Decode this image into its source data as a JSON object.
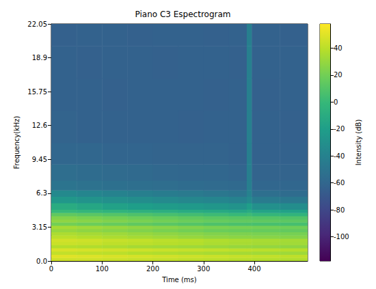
{
  "chart_data": {
    "type": "heatmap",
    "title": "Piano C3 Espectrogram",
    "x_label": "Time (ms)",
    "y_label": "Frequency(kHz)",
    "xlim": [
      0,
      505
    ],
    "xticks": [
      0,
      100,
      200,
      300,
      400
    ],
    "ylim": [
      0,
      22.05
    ],
    "yticks": [
      {
        "value": 0,
        "label": "0.0"
      },
      3.15,
      6.3,
      9.45,
      12.6,
      15.75,
      18.9,
      22.05
    ],
    "grid": false,
    "x_edges": [
      0,
      50,
      100,
      150,
      200,
      250,
      300,
      350,
      385,
      395,
      450,
      505
    ],
    "y_edges": [
      0,
      0.3,
      0.6,
      0.9,
      1.2,
      1.5,
      1.8,
      2.1,
      2.4,
      2.7,
      3.0,
      3.3,
      3.6,
      3.9,
      4.2,
      4.5,
      4.8,
      5.4,
      6.0,
      6.6,
      7.5,
      9,
      11,
      14,
      17,
      20,
      22.05
    ],
    "cells": [
      [
        45,
        45,
        44,
        43,
        42,
        41,
        40,
        39,
        39,
        38,
        37
      ],
      [
        50,
        49,
        48,
        47,
        46,
        45,
        44,
        43,
        43,
        42,
        41
      ],
      [
        42,
        41,
        40,
        38,
        37,
        36,
        35,
        34,
        34,
        33,
        32
      ],
      [
        48,
        47,
        46,
        45,
        44,
        43,
        42,
        41,
        41,
        40,
        39
      ],
      [
        38,
        37,
        36,
        34,
        33,
        32,
        31,
        30,
        30,
        29,
        28
      ],
      [
        44,
        43,
        41,
        40,
        39,
        38,
        36,
        35,
        35,
        34,
        33
      ],
      [
        46,
        45,
        43,
        42,
        40,
        39,
        37,
        36,
        36,
        35,
        34
      ],
      [
        40,
        38,
        36,
        34,
        32,
        30,
        28,
        27,
        27,
        26,
        25
      ],
      [
        36,
        34,
        32,
        30,
        28,
        26,
        24,
        23,
        23,
        22,
        21
      ],
      [
        30,
        28,
        26,
        24,
        22,
        20,
        18,
        17,
        17,
        16,
        15
      ],
      [
        34,
        32,
        30,
        28,
        26,
        24,
        22,
        21,
        21,
        20,
        19
      ],
      [
        20,
        18,
        16,
        14,
        12,
        10,
        8,
        7,
        7,
        6,
        5
      ],
      [
        28,
        26,
        24,
        22,
        20,
        18,
        16,
        15,
        15,
        14,
        13
      ],
      [
        24,
        22,
        20,
        18,
        16,
        14,
        12,
        11,
        11,
        10,
        9
      ],
      [
        14,
        12,
        10,
        8,
        6,
        4,
        2,
        0,
        2,
        -2,
        -4
      ],
      [
        0,
        -2,
        -4,
        -6,
        -8,
        -10,
        -12,
        -14,
        -10,
        -16,
        -18
      ],
      [
        -10,
        -14,
        -18,
        -20,
        -22,
        -24,
        -26,
        -28,
        -20,
        -30,
        -32
      ],
      [
        -25,
        -28,
        -30,
        -32,
        -34,
        -36,
        -38,
        -40,
        -34,
        -45,
        -47
      ],
      [
        -35,
        -38,
        -40,
        -42,
        -44,
        -46,
        -48,
        -50,
        -40,
        -54,
        -56
      ],
      [
        -50,
        -52,
        -53,
        -54,
        -55,
        -56,
        -57,
        -58,
        -42,
        -60,
        -60
      ],
      [
        -55,
        -56,
        -57,
        -58,
        -59,
        -60,
        -60,
        -61,
        -42,
        -62,
        -62
      ],
      [
        -60,
        -60,
        -61,
        -61,
        -62,
        -62,
        -62,
        -63,
        -42,
        -63,
        -63
      ],
      [
        -62,
        -63,
        -63,
        -63,
        -63,
        -64,
        -63,
        -63,
        -41,
        -63,
        -64
      ],
      [
        -63,
        -63,
        -64,
        -63,
        -63,
        -63,
        -64,
        -63,
        -41,
        -64,
        -63
      ],
      [
        -63,
        -64,
        -63,
        -63,
        -64,
        -63,
        -63,
        -64,
        -41,
        -63,
        -63
      ],
      [
        -64,
        -63,
        -63,
        -64,
        -63,
        -63,
        -64,
        -63,
        -42,
        -63,
        -64
      ]
    ],
    "colorbar": {
      "label": "Intensity (dB)",
      "range": [
        -118,
        58
      ],
      "ticks": [
        -100,
        -80,
        -60,
        -40,
        -20,
        0,
        20,
        40
      ]
    }
  }
}
